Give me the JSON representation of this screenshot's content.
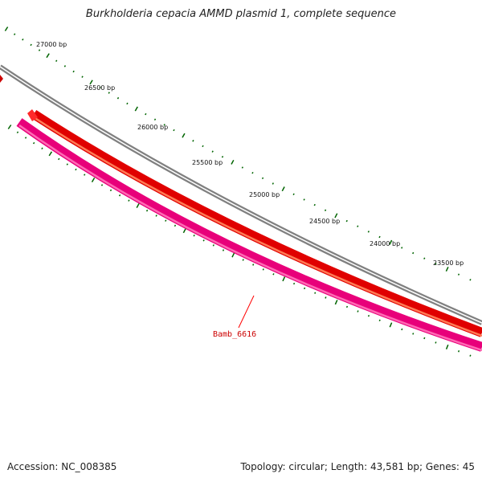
{
  "title": "Burkholderia cepacia AMMD plasmid 1, complete sequence",
  "footer": {
    "accession_label": "Accession:",
    "accession_value": "NC_008385",
    "topology_label": "Topology:",
    "topology_value": "circular",
    "length_label": "Length:",
    "length_value": "43,581 bp",
    "genes_label": "Genes:",
    "genes_value": "45"
  },
  "tick_labels": [
    {
      "position_bp": 27000,
      "text": "27000 bp"
    },
    {
      "position_bp": 26500,
      "text": "26500 bp"
    },
    {
      "position_bp": 26000,
      "text": "26000 bp"
    },
    {
      "position_bp": 25500,
      "text": "25500 bp"
    },
    {
      "position_bp": 25000,
      "text": "25000 bp"
    },
    {
      "position_bp": 24500,
      "text": "24500 bp"
    },
    {
      "position_bp": 24000,
      "text": "24000 bp"
    },
    {
      "position_bp": 23500,
      "text": "23500 bp"
    }
  ],
  "genes": [
    {
      "name": "Bamb_6616",
      "color": "#ff1493",
      "label_color": "#cc0000"
    }
  ],
  "colors": {
    "backbone": "#808080",
    "cds_track": "#ff0000",
    "gene_track": "#ff1493",
    "tick": "#006400",
    "label_line": "#ff0000"
  }
}
